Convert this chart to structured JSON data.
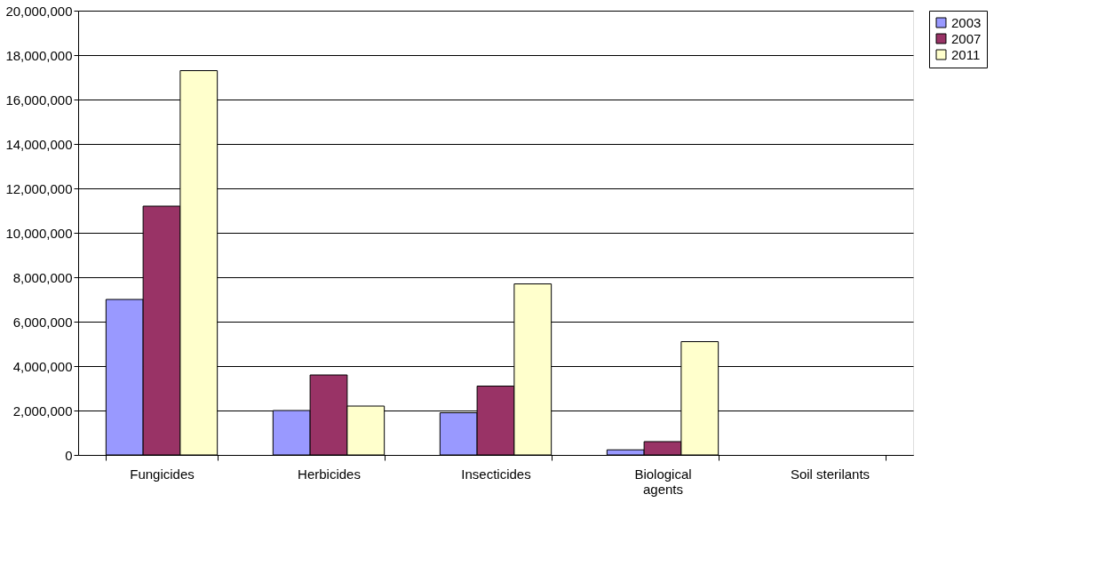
{
  "chart_data": {
    "type": "bar",
    "categories": [
      "Fungicides",
      "Herbicides",
      "Insecticides",
      "Biological agents",
      "Soil sterilants"
    ],
    "series": [
      {
        "name": "2003",
        "color": "#9999ff",
        "values": [
          7000000,
          2000000,
          1900000,
          230000,
          null
        ]
      },
      {
        "name": "2007",
        "color": "#993366",
        "values": [
          11200000,
          3600000,
          3100000,
          600000,
          null
        ]
      },
      {
        "name": "2011",
        "color": "#ffffcc",
        "values": [
          17300000,
          2200000,
          7700000,
          5100000,
          null
        ]
      }
    ],
    "ylim": [
      0,
      20000000
    ],
    "yticks": [
      0,
      {
        "value": 2000000,
        "label": "2,000,000"
      },
      {
        "value": 4000000,
        "label": "4,000,000"
      },
      {
        "value": 6000000,
        "label": "6,000,000"
      },
      {
        "value": 8000000,
        "label": "8,000,000"
      },
      {
        "value": 10000000,
        "label": "10,000,000"
      },
      {
        "value": 12000000,
        "label": "12,000,000"
      },
      {
        "value": 14000000,
        "label": "14,000,000"
      },
      {
        "value": 16000000,
        "label": "16,000,000"
      },
      {
        "value": 18000000,
        "label": "18,000,000"
      },
      {
        "value": 20000000,
        "label": "20,000,000"
      }
    ],
    "grid": "y",
    "legend": "right"
  }
}
